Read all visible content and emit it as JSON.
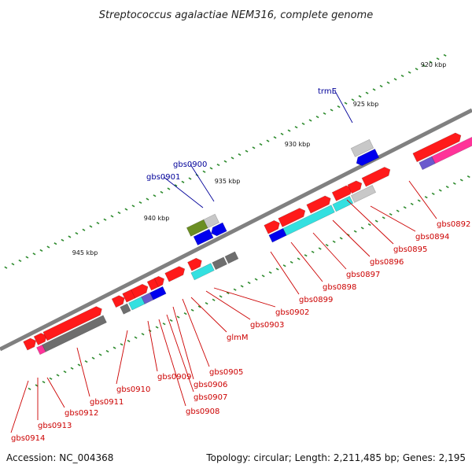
{
  "title": "Streptococcus agalactiae NEM316, complete genome",
  "footer": {
    "accession": "Accession: NC_004368",
    "summary": "Topology: circular; Length: 2,211,485 bp; Genes: 2,195"
  },
  "colors": {
    "backbone": "#808080",
    "dot_track": "#2e8b2e",
    "label_red": "#cc0000",
    "label_blue": "#000099",
    "cds": "#ff1a1a",
    "gene": "#6e6e6e",
    "gene_light": "#c8c8c8",
    "rna_cyan": "#33e0e0",
    "blue": "#0000ee",
    "pink": "#ff3399",
    "olive": "#6b8e23",
    "violet": "#6a5acd"
  },
  "scale_ticks": [
    {
      "label": "920 kbp",
      "kbp": 920
    },
    {
      "label": "925 kbp",
      "kbp": 925
    },
    {
      "label": "930 kbp",
      "kbp": 930
    },
    {
      "label": "935 kbp",
      "kbp": 935
    },
    {
      "label": "940 kbp",
      "kbp": 940
    },
    {
      "label": "945 kbp",
      "kbp": 945
    }
  ],
  "gene_labels": [
    {
      "text": "gbs0892",
      "color": "red"
    },
    {
      "text": "gbs0894",
      "color": "red"
    },
    {
      "text": "gbs0895",
      "color": "red"
    },
    {
      "text": "gbs0896",
      "color": "red"
    },
    {
      "text": "gbs0897",
      "color": "red"
    },
    {
      "text": "gbs0898",
      "color": "red"
    },
    {
      "text": "gbs0899",
      "color": "red"
    },
    {
      "text": "gbs0902",
      "color": "red"
    },
    {
      "text": "gbs0903",
      "color": "red"
    },
    {
      "text": "glmM",
      "color": "red"
    },
    {
      "text": "gbs0905",
      "color": "red"
    },
    {
      "text": "gbs0906",
      "color": "red"
    },
    {
      "text": "gbs0907",
      "color": "red"
    },
    {
      "text": "gbs0908",
      "color": "red"
    },
    {
      "text": "gbs0909",
      "color": "red"
    },
    {
      "text": "gbs0910",
      "color": "red"
    },
    {
      "text": "gbs0911",
      "color": "red"
    },
    {
      "text": "gbs0912",
      "color": "red"
    },
    {
      "text": "gbs0913",
      "color": "red"
    },
    {
      "text": "gbs0914",
      "color": "red"
    },
    {
      "text": "trmE",
      "color": "blue"
    },
    {
      "text": "gbs0900",
      "color": "blue"
    },
    {
      "text": "gbs0901",
      "color": "blue"
    }
  ]
}
